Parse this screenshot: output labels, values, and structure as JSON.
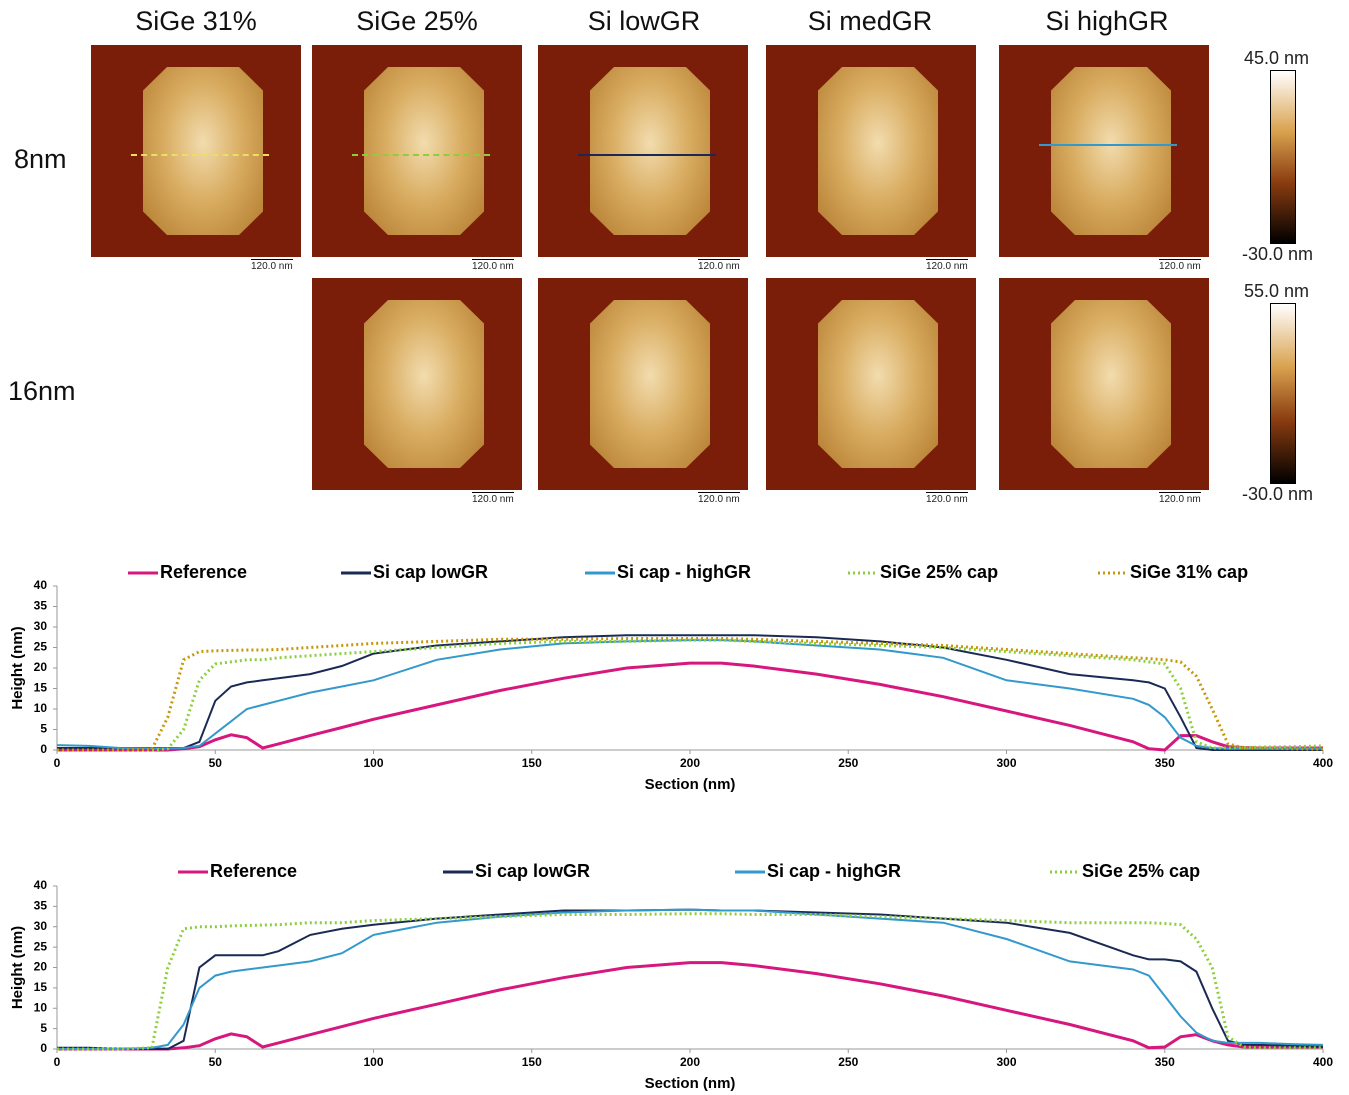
{
  "figure": {
    "columns": [
      "SiGe 31%",
      "SiGe 25%",
      "Si lowGR",
      "Si medGR",
      "Si highGR"
    ],
    "rows": [
      "8nm",
      "16nm"
    ],
    "scale_bars": [
      "120.0 nm",
      "120.0 nm",
      "120.0 nm",
      "120.0 nm",
      "120.0 nm",
      "120.0 nm",
      "120.0 nm",
      "120.0 nm",
      "120.0 nm"
    ],
    "colorbars": [
      {
        "max": "45.0 nm",
        "min": "-30.0 nm"
      },
      {
        "max": "55.0 nm",
        "min": "-30.0 nm"
      }
    ]
  },
  "chart_data": [
    {
      "type": "line",
      "x_label": "Section (nm)",
      "y_label": "Height (nm)",
      "x": [
        0,
        10,
        20,
        30,
        35,
        40,
        45,
        50,
        55,
        60,
        65,
        70,
        80,
        90,
        100,
        120,
        140,
        160,
        180,
        200,
        210,
        220,
        240,
        260,
        280,
        300,
        320,
        340,
        345,
        350,
        355,
        360,
        365,
        370,
        375,
        380,
        390,
        400
      ],
      "xlim": [
        0,
        400
      ],
      "xticks": [
        0,
        50,
        100,
        150,
        200,
        250,
        300,
        350,
        400
      ],
      "ylim": [
        0,
        40
      ],
      "yticks": [
        0,
        5,
        10,
        15,
        20,
        25,
        30,
        35,
        40
      ],
      "series": [
        {
          "name": "Reference",
          "color": "#d6177e",
          "style": "solid",
          "values": [
            0,
            0,
            0,
            0,
            0,
            0.3,
            0.8,
            2.5,
            3.7,
            3,
            0.5,
            1.5,
            3.5,
            5.5,
            7.5,
            11,
            14.5,
            17.5,
            20,
            21.2,
            21.2,
            20.5,
            18.5,
            16,
            13,
            9.5,
            6,
            2,
            0.3,
            0,
            3.5,
            3.5,
            2,
            0.8,
            0.6,
            0.5,
            0.5,
            0.5
          ]
        },
        {
          "name": "Si cap lowGR",
          "color": "#1a2a55",
          "style": "solid",
          "values": [
            0.5,
            0.5,
            0.5,
            0.5,
            0.5,
            0.5,
            2,
            12,
            15.5,
            16.5,
            17,
            17.5,
            18.5,
            20.5,
            23.5,
            25.5,
            26.5,
            27.5,
            28,
            28,
            28,
            28,
            27.5,
            26.5,
            25,
            22,
            18.5,
            17,
            16.5,
            15,
            8,
            0.5,
            0,
            0,
            0,
            0,
            0,
            0
          ]
        },
        {
          "name": "Si cap - highGR",
          "color": "#3399cc",
          "style": "solid",
          "values": [
            1.2,
            1,
            0.5,
            0.4,
            0.4,
            0.5,
            1,
            4,
            7,
            10,
            11,
            12,
            14,
            15.5,
            17,
            22,
            24.5,
            26,
            26.5,
            26.8,
            26.8,
            26.5,
            25.5,
            24.5,
            22.5,
            17,
            15,
            12.5,
            11,
            8,
            3,
            1,
            0.5,
            0.3,
            0.3,
            0.3,
            0.3,
            0.3
          ]
        },
        {
          "name": "SiGe 25% cap",
          "color": "#8ccf3c",
          "style": "dotted",
          "values": [
            0,
            0,
            0,
            0,
            0.3,
            5,
            17,
            21,
            21.5,
            22,
            22,
            22.5,
            23,
            23.5,
            24,
            25,
            26,
            26.5,
            26.5,
            26.8,
            26.8,
            26.5,
            26,
            25.5,
            25,
            24,
            23,
            22,
            21.5,
            21,
            15,
            2,
            0.5,
            0.5,
            0.6,
            0.7,
            0.8,
            1
          ]
        },
        {
          "name": "SiGe 31% cap",
          "color": "#c8960a",
          "style": "dotted",
          "values": [
            0,
            0,
            0,
            0.2,
            8,
            22,
            24,
            24.2,
            24.3,
            24.4,
            24.4,
            24.5,
            25,
            25.5,
            26,
            26.5,
            27,
            27,
            27.2,
            27.2,
            27.2,
            27,
            26.5,
            26,
            25.5,
            24.5,
            23.5,
            22.5,
            22.3,
            22,
            21.5,
            18,
            10,
            1.5,
            0.5,
            0.5,
            0.3,
            0.2
          ]
        }
      ]
    },
    {
      "type": "line",
      "x_label": "Section (nm)",
      "y_label": "Height (nm)",
      "x": [
        0,
        10,
        20,
        30,
        35,
        40,
        45,
        50,
        55,
        60,
        65,
        70,
        80,
        90,
        100,
        120,
        140,
        160,
        180,
        200,
        210,
        220,
        240,
        260,
        280,
        300,
        320,
        340,
        345,
        350,
        355,
        360,
        365,
        370,
        375,
        380,
        390,
        400
      ],
      "xlim": [
        0,
        400
      ],
      "xticks": [
        0,
        50,
        100,
        150,
        200,
        250,
        300,
        350,
        400
      ],
      "ylim": [
        0,
        40
      ],
      "yticks": [
        0,
        5,
        10,
        15,
        20,
        25,
        30,
        35,
        40
      ],
      "series": [
        {
          "name": "Reference",
          "color": "#d6177e",
          "style": "solid",
          "values": [
            0,
            0,
            0,
            0,
            0,
            0.3,
            0.8,
            2.5,
            3.7,
            3,
            0.5,
            1.5,
            3.5,
            5.5,
            7.5,
            11,
            14.5,
            17.5,
            20,
            21.2,
            21.2,
            20.5,
            18.5,
            16,
            13,
            9.5,
            6,
            2,
            0.3,
            0.5,
            3,
            3.5,
            2,
            1,
            0.5,
            0.5,
            0.5,
            0.5
          ]
        },
        {
          "name": "Si cap lowGR",
          "color": "#1a2a55",
          "style": "solid",
          "values": [
            0.3,
            0.3,
            0,
            0,
            0,
            2,
            20,
            23,
            23,
            23,
            23,
            24,
            28,
            29.5,
            30.5,
            32,
            33,
            34,
            34,
            34.2,
            34,
            34,
            33.5,
            33,
            32,
            31,
            28.5,
            23,
            22,
            22,
            21.5,
            19,
            10,
            2,
            1,
            1,
            0.8,
            0.5
          ]
        },
        {
          "name": "Si cap - highGR",
          "color": "#3399cc",
          "style": "solid",
          "values": [
            0,
            0,
            0,
            0.3,
            1,
            6,
            15,
            18,
            19,
            19.5,
            20,
            20.5,
            21.5,
            23.5,
            28,
            31,
            32.5,
            33.5,
            34,
            34.2,
            34,
            34,
            33,
            32,
            31,
            27,
            21.5,
            19.5,
            18,
            13,
            8,
            4,
            2,
            1.5,
            1.5,
            1.5,
            1.2,
            1
          ]
        },
        {
          "name": "SiGe 25% cap",
          "color": "#8ccf3c",
          "style": "dotted",
          "values": [
            0,
            0,
            0,
            0.3,
            20,
            29.5,
            30,
            30,
            30.2,
            30.3,
            30.4,
            30.5,
            31,
            31,
            31.5,
            32,
            32.5,
            33,
            33,
            33.2,
            33.2,
            33,
            33,
            32.5,
            32,
            31.5,
            31,
            31,
            31,
            30.8,
            30.5,
            27,
            20,
            3,
            0.5,
            0.3,
            0.3,
            0.3
          ]
        }
      ]
    }
  ]
}
